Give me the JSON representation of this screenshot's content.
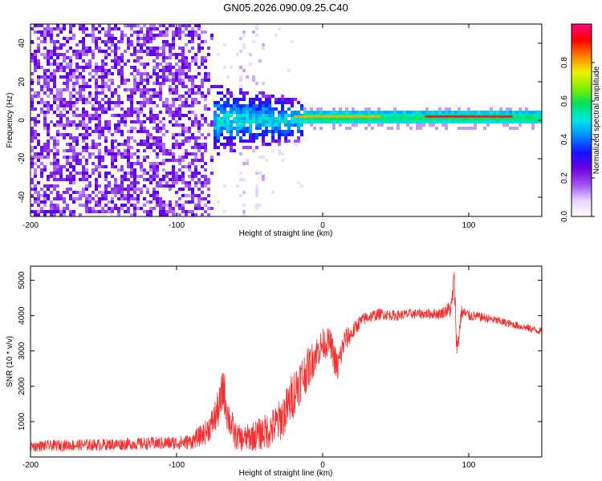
{
  "figure_title": "GN05.2026.090.09.25.C40",
  "colors": {
    "snr_line": "#f03232",
    "spec_background": "#ffffff",
    "frame": "#000000"
  },
  "colorbar": {
    "label": "Normalized spectral amplitude",
    "ticks": [
      "0.0",
      "0.2",
      "0.4",
      "0.6",
      "0.8"
    ],
    "tick_values": [
      0.0,
      0.2,
      0.4,
      0.6,
      0.8
    ],
    "range": [
      0,
      1
    ],
    "colormap": [
      "#ffffff",
      "#e6d2ff",
      "#a050f0",
      "#6a00e0",
      "#1414ff",
      "#0088ff",
      "#00e8e8",
      "#00e060",
      "#80f000",
      "#f0f000",
      "#ff8000",
      "#ff0000",
      "#ff0080"
    ]
  },
  "chart_data": [
    {
      "type": "heatmap",
      "title": "GN05.2026.090.09.25.C40",
      "xlabel": "Height of straight line (km)",
      "ylabel": "Frequency (Hz)",
      "xlim": [
        -200,
        150
      ],
      "ylim": [
        -50,
        50
      ],
      "xticks": [
        -200,
        -100,
        0,
        100
      ],
      "xtick_labels": [
        "-200",
        "-100",
        "0",
        "100"
      ],
      "yticks": [
        -40,
        -20,
        0,
        20,
        40
      ],
      "ytick_labels": [
        "-40",
        "-20",
        "0",
        "20",
        "40"
      ],
      "regions": [
        {
          "x_range": [
            -200,
            -75
          ],
          "freq_range": [
            -50,
            50
          ],
          "amplitude": 0.15,
          "pattern": "scattered noise"
        },
        {
          "x_range": [
            -75,
            -15
          ],
          "freq_range": [
            -15,
            15
          ],
          "amplitude": 0.35,
          "pattern": "turbulent spread"
        },
        {
          "x_range": [
            -15,
            150
          ],
          "freq_range": [
            -1,
            4
          ],
          "amplitude": 0.55,
          "pattern": "narrow line near 2 Hz"
        }
      ],
      "line_center_hz": 2,
      "peak_segments": [
        {
          "x_range": [
            70,
            130
          ],
          "amplitude": 0.95
        },
        {
          "x_range": [
            -20,
            40
          ],
          "amplitude": 0.8
        }
      ]
    },
    {
      "type": "line",
      "xlabel": "Height of straight line (km)",
      "ylabel": "SNR (10 * v/v)",
      "xlim": [
        -200,
        150
      ],
      "ylim": [
        0,
        5400
      ],
      "xticks": [
        -200,
        -100,
        0,
        100
      ],
      "xtick_labels": [
        "-200",
        "-100",
        "0",
        "100"
      ],
      "yticks": [
        1000,
        2000,
        3000,
        4000,
        5000
      ],
      "ytick_labels": [
        "1000",
        "2000",
        "3000",
        "4000",
        "5000"
      ],
      "series": [
        {
          "name": "SNR",
          "x": [
            -200,
            -180,
            -160,
            -140,
            -120,
            -100,
            -90,
            -80,
            -75,
            -70,
            -68,
            -65,
            -60,
            -55,
            -50,
            -45,
            -40,
            -35,
            -30,
            -25,
            -20,
            -15,
            -10,
            -5,
            0,
            5,
            10,
            15,
            20,
            25,
            30,
            35,
            40,
            50,
            60,
            70,
            80,
            85,
            88,
            90,
            92,
            95,
            100,
            110,
            120,
            130,
            140,
            150
          ],
          "y": [
            300,
            330,
            340,
            360,
            380,
            400,
            430,
            700,
            1000,
            1500,
            2000,
            1200,
            600,
            500,
            560,
            620,
            700,
            800,
            1000,
            1300,
            1800,
            2200,
            2500,
            2900,
            3200,
            3250,
            2500,
            3300,
            3500,
            3800,
            3950,
            4000,
            4050,
            4000,
            4050,
            4050,
            4050,
            4150,
            4200,
            5000,
            3000,
            4100,
            4000,
            3950,
            3850,
            3750,
            3650,
            3550
          ],
          "noise": [
            150,
            160,
            170,
            170,
            180,
            200,
            220,
            350,
            450,
            600,
            700,
            550,
            400,
            350,
            400,
            450,
            500,
            550,
            600,
            650,
            700,
            650,
            600,
            500,
            450,
            400,
            500,
            350,
            250,
            200,
            180,
            170,
            160,
            150,
            140,
            140,
            150,
            200,
            300,
            400,
            400,
            200,
            160,
            130,
            120,
            110,
            110,
            110
          ]
        }
      ]
    }
  ]
}
